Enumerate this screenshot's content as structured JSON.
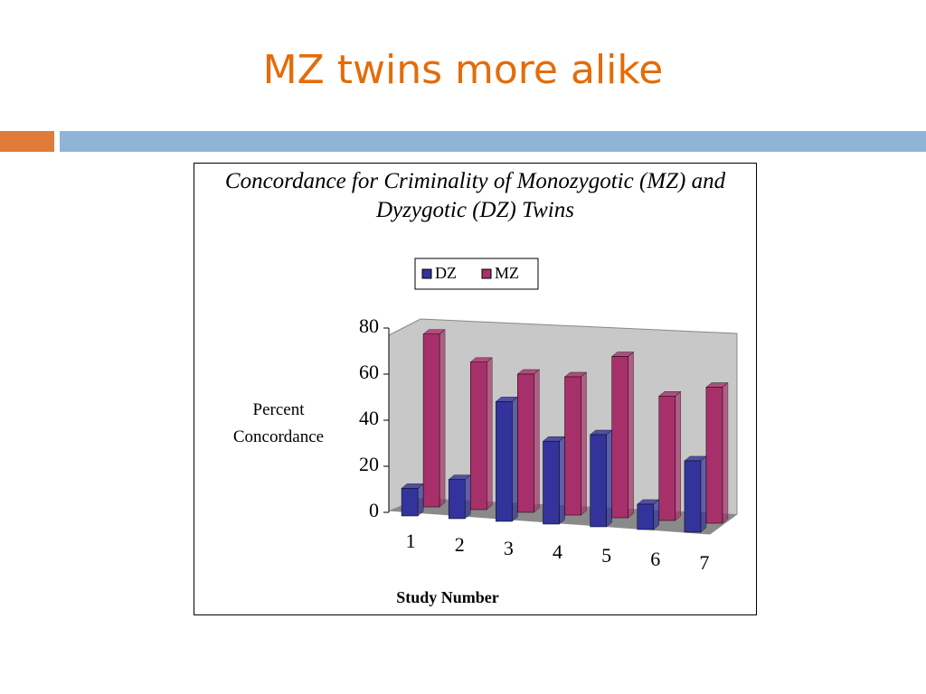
{
  "slide_title": "MZ twins more alike",
  "chart_data": {
    "type": "bar",
    "title": "Concordance for Criminality of Monozygotic (MZ) and Dyzygotic (DZ) Twins",
    "x_label": "Study Number",
    "y_label": "Percent Concordance",
    "categories": [
      "1",
      "2",
      "3",
      "4",
      "5",
      "6",
      "7"
    ],
    "series": [
      {
        "name": "DZ",
        "color": "#33339c",
        "values": [
          12,
          17,
          52,
          36,
          40,
          11,
          31
        ]
      },
      {
        "name": "MZ",
        "color": "#a8306a",
        "values": [
          75,
          64,
          60,
          60,
          70,
          54,
          59
        ]
      }
    ],
    "ylim": [
      0,
      80
    ],
    "yticks": [
      0,
      20,
      40,
      60,
      80
    ],
    "grid": false
  }
}
